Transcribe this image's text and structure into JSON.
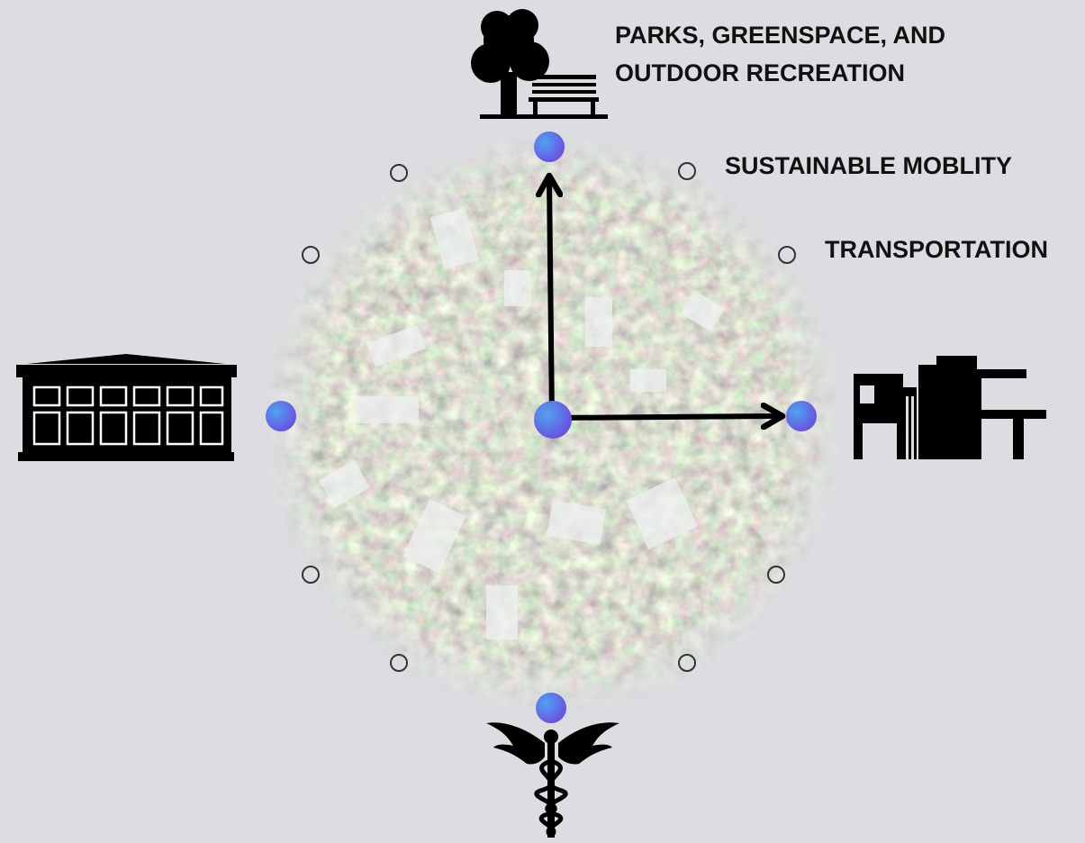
{
  "labels": [
    {
      "lines": [
        "PARKS, GREENSPACE, AND",
        "OUTDOOR RECREATION"
      ]
    },
    {
      "lines": [
        "SUSTAINABLE MOBLITY"
      ]
    },
    {
      "lines": [
        "TRANSPORTATION"
      ]
    }
  ]
}
